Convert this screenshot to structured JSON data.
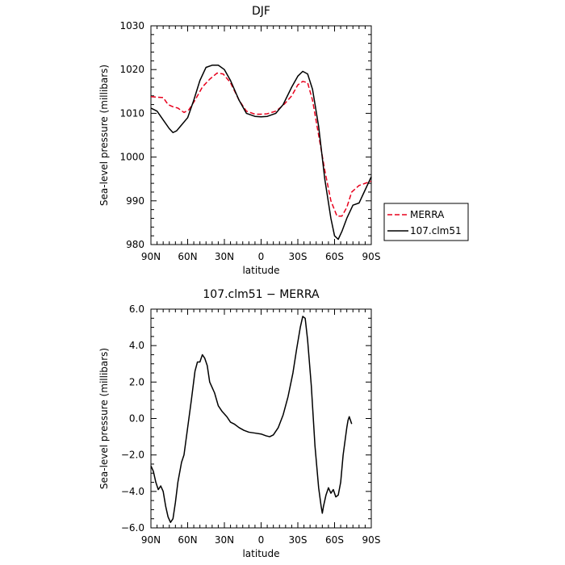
{
  "chart_data": [
    {
      "type": "line",
      "title": "DJF",
      "xlabel": "latitude",
      "ylabel": "Sea-level pressure (millibars)",
      "xlim": [
        90,
        -90
      ],
      "ylim": [
        980,
        1030
      ],
      "xtick_labels": [
        "90N",
        "60N",
        "30N",
        "0",
        "30S",
        "60S",
        "90S"
      ],
      "ytick_labels": [
        "980",
        "990",
        "1000",
        "1010",
        "1020",
        "1030"
      ],
      "legend_position": "outside-right",
      "series": [
        {
          "name": "MERRA",
          "color": "#e8001c",
          "style": "dashed",
          "points": [
            [
              90,
              1013.8
            ],
            [
              85,
              1013.7
            ],
            [
              80,
              1013.6
            ],
            [
              76,
              1012
            ],
            [
              72,
              1011.5
            ],
            [
              68,
              1011.2
            ],
            [
              63,
              1010.2
            ],
            [
              59,
              1010.8
            ],
            [
              54,
              1013
            ],
            [
              48,
              1016
            ],
            [
              42,
              1017.8
            ],
            [
              36,
              1019.2
            ],
            [
              31,
              1019
            ],
            [
              25,
              1017
            ],
            [
              18,
              1013
            ],
            [
              12,
              1010.5
            ],
            [
              5,
              1009.8
            ],
            [
              0,
              1009.8
            ],
            [
              -5,
              1009.9
            ],
            [
              -12,
              1010.5
            ],
            [
              -18,
              1011.8
            ],
            [
              -25,
              1014
            ],
            [
              -30,
              1016.5
            ],
            [
              -34,
              1017.3
            ],
            [
              -38,
              1017
            ],
            [
              -42,
              1013
            ],
            [
              -47,
              1005
            ],
            [
              -52,
              997
            ],
            [
              -57,
              990
            ],
            [
              -62,
              986.5
            ],
            [
              -66,
              986.5
            ],
            [
              -70,
              988.5
            ],
            [
              -74,
              992
            ],
            [
              -80,
              993.5
            ],
            [
              -85,
              994
            ],
            [
              -90,
              994.5
            ]
          ]
        },
        {
          "name": "107.clm51",
          "color": "#000000",
          "style": "solid",
          "points": [
            [
              90,
              1011.2
            ],
            [
              85,
              1010.5
            ],
            [
              80,
              1008.5
            ],
            [
              75,
              1006.5
            ],
            [
              72,
              1005.6
            ],
            [
              69,
              1006
            ],
            [
              66,
              1007
            ],
            [
              60,
              1009
            ],
            [
              55,
              1013
            ],
            [
              50,
              1017.5
            ],
            [
              45,
              1020.5
            ],
            [
              40,
              1021
            ],
            [
              35,
              1021
            ],
            [
              30,
              1020
            ],
            [
              25,
              1017.5
            ],
            [
              18,
              1013
            ],
            [
              12,
              1010
            ],
            [
              5,
              1009.3
            ],
            [
              0,
              1009.2
            ],
            [
              -5,
              1009.3
            ],
            [
              -12,
              1010
            ],
            [
              -18,
              1012
            ],
            [
              -25,
              1016
            ],
            [
              -30,
              1018.5
            ],
            [
              -34,
              1019.6
            ],
            [
              -38,
              1019
            ],
            [
              -42,
              1015.5
            ],
            [
              -47,
              1007
            ],
            [
              -52,
              995
            ],
            [
              -57,
              986
            ],
            [
              -60,
              982
            ],
            [
              -63,
              981.2
            ],
            [
              -66,
              983
            ],
            [
              -70,
              986
            ],
            [
              -75,
              989
            ],
            [
              -80,
              989.5
            ],
            [
              -85,
              992.5
            ],
            [
              -90,
              995.5
            ]
          ]
        }
      ]
    },
    {
      "type": "line",
      "title": "107.clm51 − MERRA",
      "xlabel": "latitude",
      "ylabel": "Sea-level pressure (millibars)",
      "xlim": [
        90,
        -90
      ],
      "ylim": [
        -6,
        6
      ],
      "xtick_labels": [
        "90N",
        "60N",
        "30N",
        "0",
        "30S",
        "60S",
        "90S"
      ],
      "ytick_labels": [
        "−6.0",
        "−4.0",
        "−2.0",
        "0.0",
        "2.0",
        "4.0",
        "6.0"
      ],
      "series": [
        {
          "color": "#000000",
          "style": "solid",
          "points": [
            [
              90,
              -2.6
            ],
            [
              88,
              -2.9
            ],
            [
              86,
              -3.5
            ],
            [
              84,
              -3.9
            ],
            [
              82,
              -3.7
            ],
            [
              80,
              -4.0
            ],
            [
              78,
              -4.8
            ],
            [
              76,
              -5.4
            ],
            [
              74,
              -5.7
            ],
            [
              72,
              -5.5
            ],
            [
              70,
              -4.6
            ],
            [
              68,
              -3.5
            ],
            [
              65,
              -2.4
            ],
            [
              63,
              -2.0
            ],
            [
              60,
              -0.5
            ],
            [
              57,
              1.0
            ],
            [
              54,
              2.6
            ],
            [
              52,
              3.1
            ],
            [
              50,
              3.1
            ],
            [
              48,
              3.5
            ],
            [
              46,
              3.3
            ],
            [
              44,
              2.9
            ],
            [
              42,
              2.0
            ],
            [
              40,
              1.7
            ],
            [
              38,
              1.4
            ],
            [
              35,
              0.7
            ],
            [
              32,
              0.4
            ],
            [
              28,
              0.1
            ],
            [
              25,
              -0.2
            ],
            [
              22,
              -0.3
            ],
            [
              18,
              -0.5
            ],
            [
              14,
              -0.65
            ],
            [
              10,
              -0.75
            ],
            [
              5,
              -0.8
            ],
            [
              0,
              -0.85
            ],
            [
              -4,
              -0.95
            ],
            [
              -7,
              -1.0
            ],
            [
              -10,
              -0.9
            ],
            [
              -14,
              -0.5
            ],
            [
              -18,
              0.2
            ],
            [
              -22,
              1.2
            ],
            [
              -26,
              2.5
            ],
            [
              -29,
              3.8
            ],
            [
              -32,
              5.0
            ],
            [
              -34,
              5.6
            ],
            [
              -36,
              5.5
            ],
            [
              -38,
              4.3
            ],
            [
              -41,
              1.8
            ],
            [
              -44,
              -1.5
            ],
            [
              -47,
              -3.8
            ],
            [
              -49,
              -4.8
            ],
            [
              -50,
              -5.2
            ],
            [
              -51,
              -4.8
            ],
            [
              -53,
              -4.2
            ],
            [
              -55,
              -3.8
            ],
            [
              -57,
              -4.1
            ],
            [
              -59,
              -3.9
            ],
            [
              -61,
              -4.3
            ],
            [
              -63,
              -4.2
            ],
            [
              -65,
              -3.5
            ],
            [
              -67,
              -2.0
            ],
            [
              -69,
              -1.0
            ],
            [
              -70,
              -0.5
            ],
            [
              -71,
              -0.1
            ],
            [
              -72,
              0.1
            ],
            [
              -73,
              -0.1
            ],
            [
              -74,
              -0.3
            ]
          ]
        }
      ]
    }
  ]
}
